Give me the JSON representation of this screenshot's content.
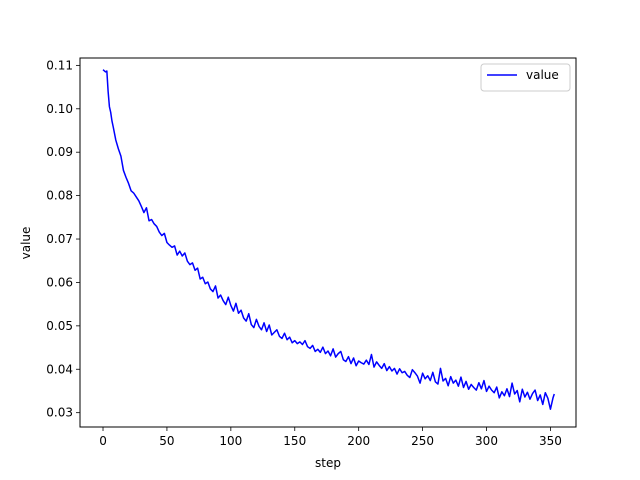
{
  "chart_data": {
    "type": "line",
    "title": "",
    "xlabel": "step",
    "ylabel": "value",
    "xlim": [
      -18,
      370
    ],
    "ylim": [
      0.0267,
      0.1117
    ],
    "xticks": [
      0,
      50,
      100,
      150,
      200,
      250,
      300,
      350
    ],
    "xtick_labels": [
      "0",
      "50",
      "100",
      "150",
      "200",
      "250",
      "300",
      "350"
    ],
    "yticks": [
      0.03,
      0.04,
      0.05,
      0.06,
      0.07,
      0.08,
      0.09,
      0.1,
      0.11
    ],
    "ytick_labels": [
      "0.03",
      "0.04",
      "0.05",
      "0.06",
      "0.07",
      "0.08",
      "0.09",
      "0.10",
      "0.11"
    ],
    "grid": false,
    "legend_position": "top-right",
    "series": [
      {
        "name": "value",
        "color": "#0000ff",
        "x": [
          0,
          2,
          3,
          4,
          5,
          6,
          7,
          8,
          10,
          12,
          14,
          16,
          18,
          20,
          22,
          24,
          26,
          28,
          30,
          32,
          34,
          36,
          38,
          40,
          42,
          44,
          46,
          48,
          50,
          52,
          54,
          56,
          58,
          60,
          62,
          64,
          66,
          68,
          70,
          72,
          74,
          76,
          78,
          80,
          82,
          84,
          86,
          88,
          90,
          92,
          94,
          96,
          98,
          100,
          102,
          104,
          106,
          108,
          110,
          112,
          114,
          116,
          118,
          120,
          122,
          124,
          126,
          128,
          130,
          132,
          134,
          136,
          138,
          140,
          142,
          144,
          146,
          148,
          150,
          152,
          154,
          156,
          158,
          160,
          162,
          164,
          166,
          168,
          170,
          172,
          174,
          176,
          178,
          180,
          182,
          184,
          186,
          188,
          190,
          192,
          194,
          196,
          198,
          200,
          202,
          204,
          206,
          208,
          210,
          212,
          214,
          216,
          218,
          220,
          222,
          224,
          226,
          228,
          230,
          232,
          234,
          236,
          238,
          240,
          242,
          244,
          246,
          248,
          250,
          252,
          254,
          256,
          258,
          260,
          262,
          264,
          266,
          268,
          270,
          272,
          274,
          276,
          278,
          280,
          282,
          284,
          286,
          288,
          290,
          292,
          294,
          296,
          298,
          300,
          302,
          304,
          306,
          308,
          310,
          312,
          314,
          316,
          318,
          320,
          322,
          324,
          326,
          328,
          330,
          332,
          334,
          336,
          338,
          340,
          342,
          344,
          346,
          348,
          350,
          352,
          353
        ],
        "values": [
          0.109,
          0.1085,
          0.1087,
          0.104,
          0.1005,
          0.0992,
          0.0972,
          0.0958,
          0.0928,
          0.0908,
          0.0891,
          0.0858,
          0.0842,
          0.0828,
          0.0811,
          0.0806,
          0.0797,
          0.0788,
          0.0775,
          0.0761,
          0.0772,
          0.0742,
          0.0745,
          0.0735,
          0.0729,
          0.0716,
          0.0708,
          0.0713,
          0.0692,
          0.0686,
          0.0681,
          0.0684,
          0.0663,
          0.0672,
          0.0661,
          0.0668,
          0.0649,
          0.0641,
          0.0645,
          0.0628,
          0.0633,
          0.0608,
          0.0612,
          0.0597,
          0.0601,
          0.0585,
          0.0579,
          0.0592,
          0.0564,
          0.0571,
          0.0558,
          0.0549,
          0.0566,
          0.0547,
          0.0534,
          0.0552,
          0.0529,
          0.0536,
          0.0518,
          0.0511,
          0.0528,
          0.0503,
          0.0496,
          0.0515,
          0.0499,
          0.0491,
          0.0507,
          0.0487,
          0.0502,
          0.0479,
          0.0485,
          0.0491,
          0.0476,
          0.0471,
          0.0483,
          0.0468,
          0.0474,
          0.0461,
          0.0466,
          0.0459,
          0.0463,
          0.0457,
          0.0466,
          0.0452,
          0.0448,
          0.0455,
          0.0441,
          0.0446,
          0.0439,
          0.0451,
          0.0436,
          0.0442,
          0.0431,
          0.0447,
          0.0428,
          0.0436,
          0.0441,
          0.0422,
          0.0418,
          0.0429,
          0.0413,
          0.0426,
          0.0408,
          0.0419,
          0.0415,
          0.0412,
          0.0421,
          0.0411,
          0.0434,
          0.0405,
          0.0417,
          0.0409,
          0.0402,
          0.0413,
          0.0397,
          0.0406,
          0.0396,
          0.0402,
          0.0389,
          0.0401,
          0.0392,
          0.0395,
          0.0386,
          0.0381,
          0.0399,
          0.0392,
          0.0384,
          0.0368,
          0.0391,
          0.0378,
          0.0385,
          0.0374,
          0.0393,
          0.0371,
          0.0366,
          0.0402,
          0.0373,
          0.0379,
          0.0362,
          0.0383,
          0.0368,
          0.0375,
          0.0361,
          0.0382,
          0.0358,
          0.0372,
          0.0354,
          0.0365,
          0.0358,
          0.0352,
          0.0369,
          0.0355,
          0.0374,
          0.0349,
          0.0361,
          0.0352,
          0.0346,
          0.0359,
          0.0334,
          0.0348,
          0.0339,
          0.0355,
          0.0337,
          0.0368,
          0.0343,
          0.0351,
          0.0325,
          0.0354,
          0.0336,
          0.0347,
          0.0331,
          0.0344,
          0.0352,
          0.0328,
          0.0341,
          0.0319,
          0.0346,
          0.0333,
          0.0308,
          0.0334,
          0.0343
        ]
      }
    ]
  }
}
